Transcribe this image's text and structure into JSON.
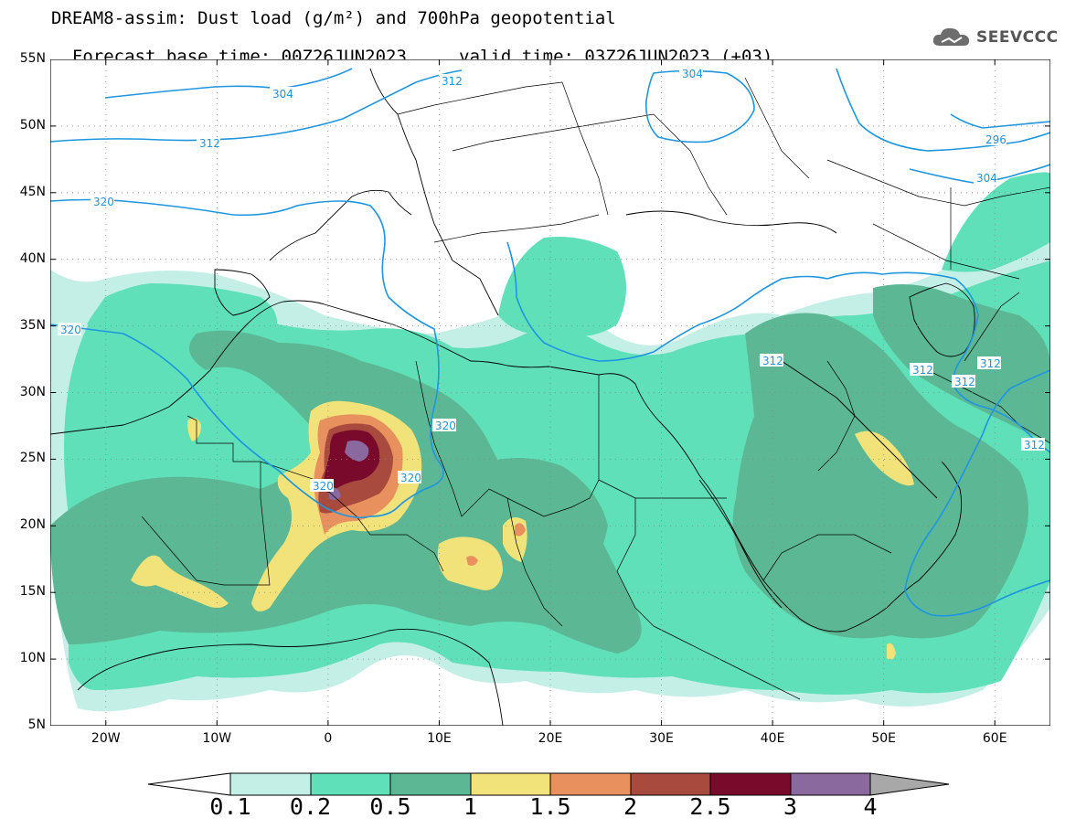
{
  "title": {
    "line1": "DREAM8-assim: Dust load (g/m²) and 700hPa geopotential",
    "line2_base": "Forecast base time: 00Z26JUN2023",
    "line2_valid": "valid time: 03Z26JUN2023 (+03)"
  },
  "logo": {
    "text": "SEEVCCC",
    "icon": "cloud-logo-icon"
  },
  "axes": {
    "lat_labels": [
      "55N",
      "50N",
      "45N",
      "40N",
      "35N",
      "30N",
      "25N",
      "20N",
      "15N",
      "10N",
      "5N"
    ],
    "lon_labels": [
      "20W",
      "10W",
      "0",
      "10E",
      "20E",
      "30E",
      "40E",
      "50E",
      "60E"
    ],
    "lon_range": [
      -25,
      65
    ],
    "lat_range": [
      5,
      55
    ],
    "grid": true
  },
  "contours": {
    "labels": [
      "304",
      "312",
      "320",
      "296",
      "304",
      "312",
      "320",
      "320",
      "320",
      "312",
      "312",
      "312",
      "312",
      "312",
      "304"
    ]
  },
  "colorbar": {
    "labels": [
      "0.1",
      "0.2",
      "0.5",
      "1",
      "1.5",
      "2",
      "2.5",
      "3",
      "4"
    ],
    "colors": [
      "#ffffff",
      "#c4efe6",
      "#5fe0b8",
      "#5cb894",
      "#f2e27a",
      "#e8905e",
      "#a94a3e",
      "#7a0a2c",
      "#8a6a9e",
      "#a8a8a8"
    ]
  }
}
